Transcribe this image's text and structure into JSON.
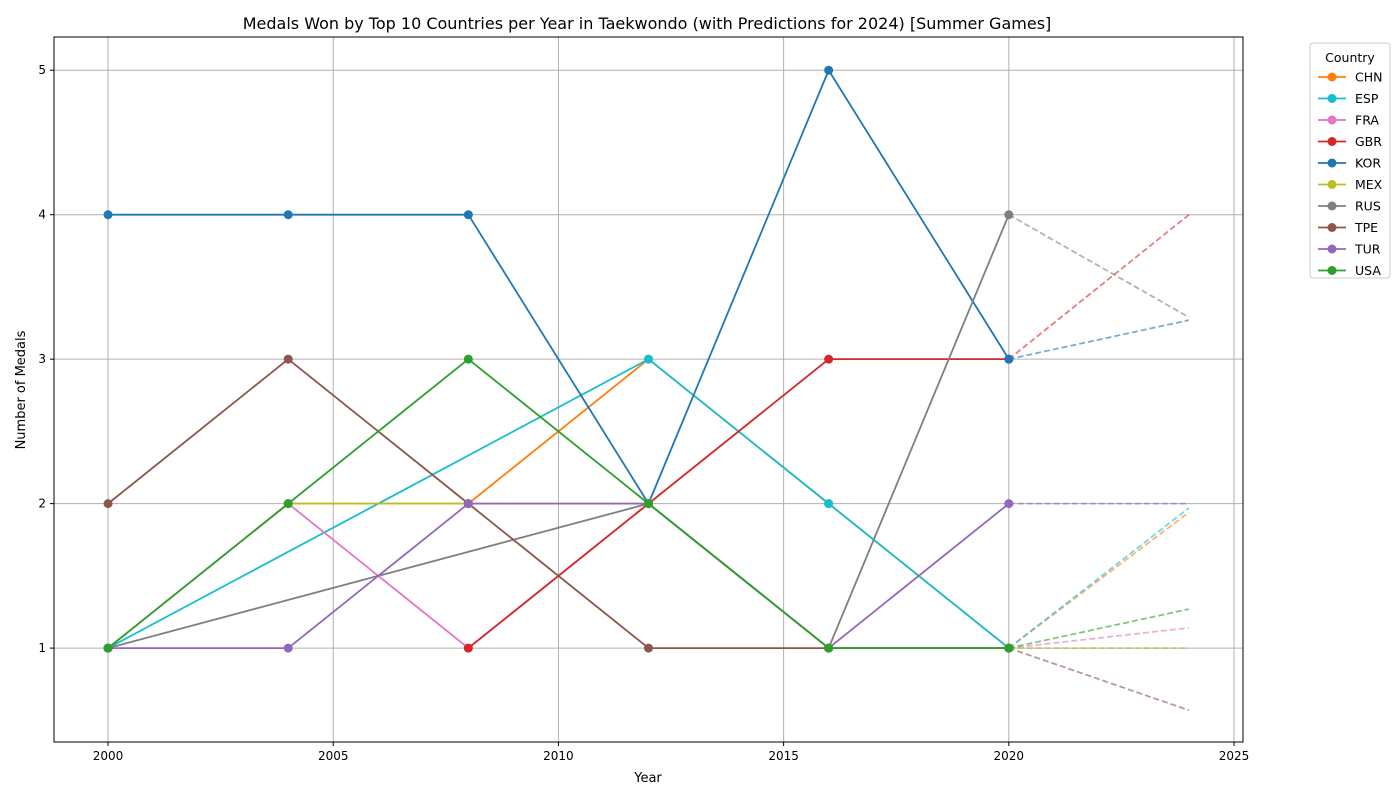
{
  "chart_data": {
    "type": "line",
    "title": "Medals Won by Top 10 Countries per Year in Taekwondo (with Predictions for 2024) [Summer Games]",
    "xlabel": "Year",
    "ylabel": "Number of Medals",
    "xlim": [
      1998.8,
      2025.2
    ],
    "ylim": [
      0.35,
      5.23
    ],
    "xticks": [
      2000,
      2005,
      2010,
      2015,
      2020,
      2025
    ],
    "yticks": [
      1,
      2,
      3,
      4,
      5
    ],
    "grid": true,
    "legend": {
      "title": "Country",
      "placement": "outside-right"
    },
    "series": [
      {
        "name": "CHN",
        "color": "#ff7f0e",
        "x": [
          2000,
          2004,
          2008,
          2012,
          2016,
          2020
        ],
        "y": [
          1,
          2,
          2,
          3,
          2,
          1
        ],
        "prediction": {
          "x": [
            2020,
            2024
          ],
          "y": [
            1,
            1.94
          ]
        }
      },
      {
        "name": "ESP",
        "color": "#17becf",
        "x": [
          2000,
          2012,
          2016,
          2020
        ],
        "y": [
          1,
          3,
          2,
          1
        ],
        "prediction": {
          "x": [
            2020,
            2024
          ],
          "y": [
            1,
            1.97
          ]
        }
      },
      {
        "name": "FRA",
        "color": "#e377c2",
        "x": [
          2000,
          2004,
          2008,
          2012,
          2016,
          2020
        ],
        "y": [
          1,
          2,
          1,
          2,
          1,
          1
        ],
        "prediction": {
          "x": [
            2020,
            2024
          ],
          "y": [
            1,
            1.14
          ]
        }
      },
      {
        "name": "GBR",
        "color": "#d62728",
        "x": [
          2008,
          2012,
          2016,
          2020
        ],
        "y": [
          1,
          2,
          3,
          3
        ],
        "prediction": {
          "x": [
            2020,
            2024
          ],
          "y": [
            3,
            4.0
          ]
        }
      },
      {
        "name": "KOR",
        "color": "#1f77b4",
        "x": [
          2000,
          2004,
          2008,
          2012,
          2016,
          2020
        ],
        "y": [
          4,
          4,
          4,
          2,
          5,
          3
        ],
        "prediction": {
          "x": [
            2020,
            2024
          ],
          "y": [
            3,
            3.27
          ]
        }
      },
      {
        "name": "MEX",
        "color": "#bcbd22",
        "x": [
          2004,
          2008,
          2012,
          2016,
          2020
        ],
        "y": [
          2,
          2,
          2,
          1,
          1
        ],
        "prediction": {
          "x": [
            2020,
            2024
          ],
          "y": [
            1,
            1.0
          ]
        }
      },
      {
        "name": "RUS",
        "color": "#7f7f7f",
        "x": [
          2000,
          2012,
          2016,
          2020
        ],
        "y": [
          1,
          2,
          1,
          4
        ],
        "prediction": {
          "x": [
            2020,
            2024
          ],
          "y": [
            4,
            3.29
          ]
        }
      },
      {
        "name": "TPE",
        "color": "#8c564b",
        "x": [
          2000,
          2004,
          2008,
          2012,
          2016,
          2020
        ],
        "y": [
          2,
          3,
          2,
          1,
          1,
          1
        ],
        "prediction": {
          "x": [
            2020,
            2024
          ],
          "y": [
            1,
            0.57
          ]
        }
      },
      {
        "name": "TUR",
        "color": "#9467bd",
        "x": [
          2000,
          2004,
          2008,
          2012,
          2016,
          2020
        ],
        "y": [
          1,
          1,
          2,
          2,
          1,
          2
        ],
        "prediction": {
          "x": [
            2020,
            2024
          ],
          "y": [
            2,
            2.0
          ]
        }
      },
      {
        "name": "USA",
        "color": "#2ca02c",
        "x": [
          2000,
          2004,
          2008,
          2012,
          2016,
          2020
        ],
        "y": [
          1,
          2,
          3,
          2,
          1,
          1
        ],
        "prediction": {
          "x": [
            2020,
            2024
          ],
          "y": [
            1,
            1.27
          ]
        }
      }
    ]
  }
}
